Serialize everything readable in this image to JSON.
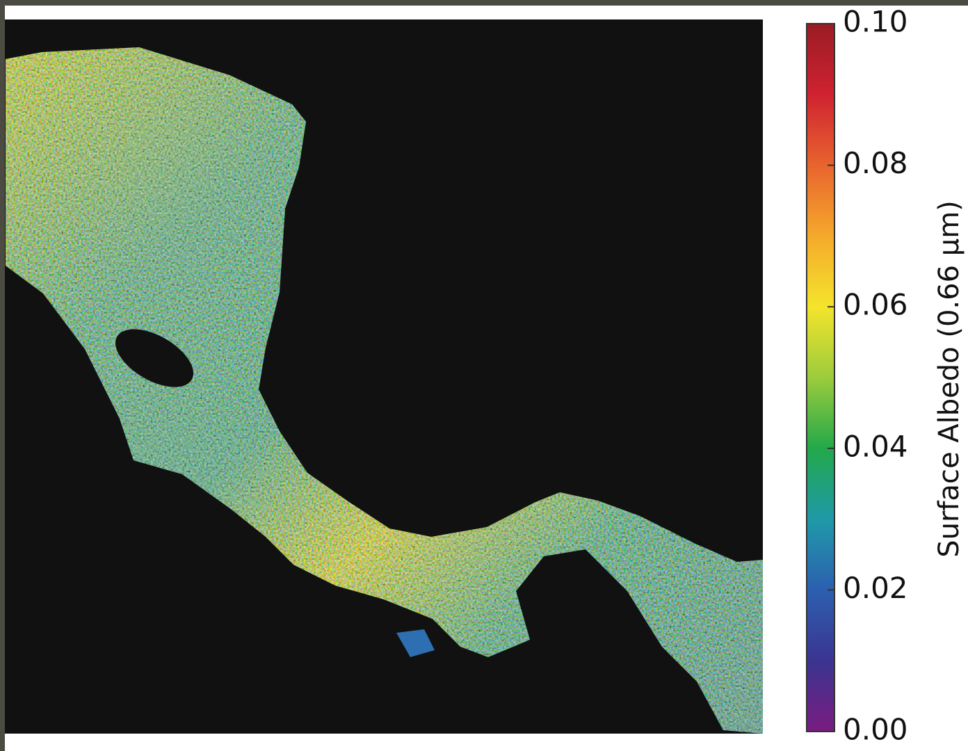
{
  "map": {
    "colorbar": {
      "label": "Surface Albedo (0.66 µm)",
      "range": [
        0,
        0.1
      ],
      "ticks": [
        {
          "value": 0,
          "label": "0.00"
        },
        0.02,
        0.04,
        0.06,
        0.08,
        {
          "value": 0.1,
          "label": "0.10"
        }
      ],
      "colors": [
        "#7a1c80",
        "#3a3590",
        "#2c5fb0",
        "#1f9aa8",
        "#22a84a",
        "#9ccc3c",
        "#f4e42c",
        "#f5a92c",
        "#e8642e",
        "#cf2230",
        "#9a1c24"
      ]
    }
  }
}
